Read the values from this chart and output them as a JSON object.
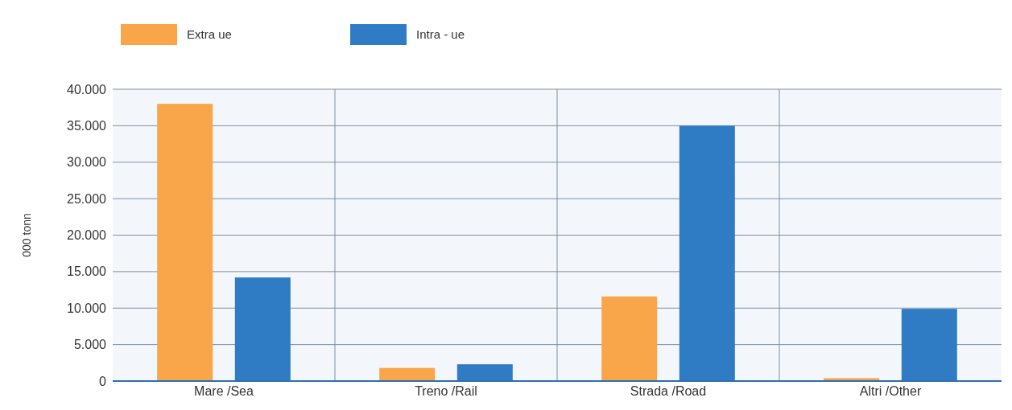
{
  "chart_data": {
    "type": "bar",
    "ylabel": "000 tonn",
    "categories": [
      "Mare /Sea",
      "Treno /Rail",
      "Strada /Road",
      "Altri /Other"
    ],
    "series": [
      {
        "name": "Extra ue",
        "color": "#f9a54a",
        "values": [
          38000,
          1800,
          11600,
          400
        ]
      },
      {
        "name": "Intra - ue",
        "color": "#2f7cc4",
        "values": [
          14200,
          2300,
          35000,
          9900
        ]
      }
    ],
    "ylim": [
      0,
      40000
    ],
    "yticks": [
      {
        "value": 0,
        "label": "0"
      },
      {
        "value": 5000,
        "label": "5.000"
      },
      {
        "value": 10000,
        "label": "10.000"
      },
      {
        "value": 15000,
        "label": "15.000"
      },
      {
        "value": 20000,
        "label": "20.000"
      },
      {
        "value": 25000,
        "label": "25.000"
      },
      {
        "value": 30000,
        "label": "30.000"
      },
      {
        "value": 35000,
        "label": "35.000"
      },
      {
        "value": 40000,
        "label": "40.000"
      }
    ],
    "grid": true,
    "legend": "top left"
  }
}
